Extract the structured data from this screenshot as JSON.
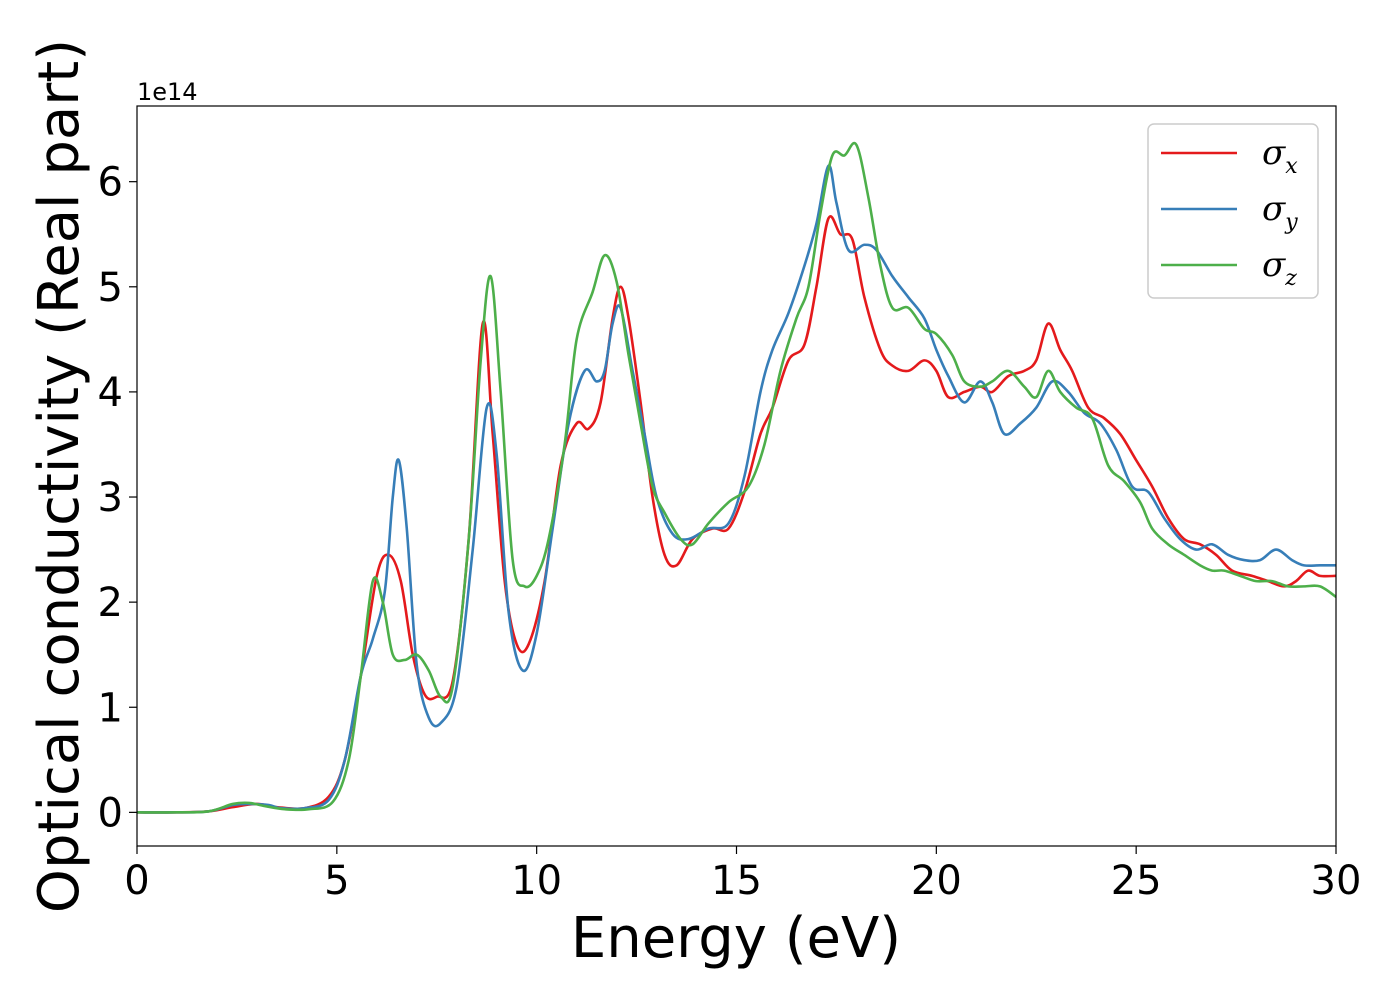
{
  "chart_data": {
    "type": "line",
    "title": "",
    "xlabel": "Energy (eV)",
    "ylabel": "Optical conductivity (Real part)",
    "y_offset_label": "1e14",
    "xlim": [
      0,
      30
    ],
    "ylim": [
      -0.32,
      6.72
    ],
    "x_ticks": [
      0,
      5,
      10,
      15,
      20,
      25,
      30
    ],
    "y_ticks": [
      0,
      1,
      2,
      3,
      4,
      5,
      6
    ],
    "x_tick_labels": [
      "0",
      "5",
      "10",
      "15",
      "20",
      "25",
      "30"
    ],
    "y_tick_labels": [
      "0",
      "1",
      "2",
      "3",
      "4",
      "5",
      "6"
    ],
    "grid": false,
    "legend_position": "top-right",
    "series": [
      {
        "name_base": "σ",
        "name_sub": "x",
        "color": "#e41a1c",
        "points": [
          [
            0,
            0
          ],
          [
            1,
            0
          ],
          [
            1.8,
            0.01
          ],
          [
            2.4,
            0.05
          ],
          [
            3.0,
            0.08
          ],
          [
            3.5,
            0.05
          ],
          [
            4.2,
            0.04
          ],
          [
            4.8,
            0.15
          ],
          [
            5.2,
            0.5
          ],
          [
            5.6,
            1.3
          ],
          [
            6.0,
            2.25
          ],
          [
            6.3,
            2.45
          ],
          [
            6.6,
            2.2
          ],
          [
            6.9,
            1.5
          ],
          [
            7.2,
            1.12
          ],
          [
            7.5,
            1.1
          ],
          [
            7.9,
            1.25
          ],
          [
            8.3,
            2.6
          ],
          [
            8.65,
            4.65
          ],
          [
            8.9,
            3.6
          ],
          [
            9.2,
            2.2
          ],
          [
            9.5,
            1.6
          ],
          [
            9.8,
            1.6
          ],
          [
            10.2,
            2.2
          ],
          [
            10.6,
            3.3
          ],
          [
            11.0,
            3.7
          ],
          [
            11.3,
            3.65
          ],
          [
            11.6,
            3.9
          ],
          [
            11.9,
            4.7
          ],
          [
            12.1,
            5.0
          ],
          [
            12.3,
            4.7
          ],
          [
            12.6,
            3.9
          ],
          [
            12.9,
            3.0
          ],
          [
            13.2,
            2.45
          ],
          [
            13.5,
            2.35
          ],
          [
            13.9,
            2.6
          ],
          [
            14.4,
            2.7
          ],
          [
            14.8,
            2.7
          ],
          [
            15.2,
            3.05
          ],
          [
            15.6,
            3.6
          ],
          [
            15.9,
            3.85
          ],
          [
            16.3,
            4.3
          ],
          [
            16.7,
            4.45
          ],
          [
            17.0,
            5.0
          ],
          [
            17.3,
            5.65
          ],
          [
            17.6,
            5.5
          ],
          [
            17.9,
            5.45
          ],
          [
            18.2,
            4.9
          ],
          [
            18.6,
            4.4
          ],
          [
            18.9,
            4.25
          ],
          [
            19.3,
            4.2
          ],
          [
            19.7,
            4.3
          ],
          [
            20.0,
            4.2
          ],
          [
            20.3,
            3.95
          ],
          [
            20.7,
            4.0
          ],
          [
            21.1,
            4.05
          ],
          [
            21.4,
            4.0
          ],
          [
            21.8,
            4.15
          ],
          [
            22.2,
            4.2
          ],
          [
            22.5,
            4.3
          ],
          [
            22.8,
            4.65
          ],
          [
            23.1,
            4.4
          ],
          [
            23.4,
            4.2
          ],
          [
            23.8,
            3.85
          ],
          [
            24.2,
            3.75
          ],
          [
            24.6,
            3.6
          ],
          [
            25.0,
            3.35
          ],
          [
            25.4,
            3.1
          ],
          [
            25.8,
            2.8
          ],
          [
            26.2,
            2.6
          ],
          [
            26.6,
            2.55
          ],
          [
            27.0,
            2.45
          ],
          [
            27.4,
            2.3
          ],
          [
            27.9,
            2.25
          ],
          [
            28.3,
            2.2
          ],
          [
            28.7,
            2.15
          ],
          [
            29.0,
            2.2
          ],
          [
            29.3,
            2.3
          ],
          [
            29.6,
            2.25
          ],
          [
            30.0,
            2.25
          ]
        ]
      },
      {
        "name_base": "σ",
        "name_sub": "y",
        "color": "#377eb8",
        "points": [
          [
            0,
            0
          ],
          [
            1,
            0
          ],
          [
            1.8,
            0.01
          ],
          [
            2.4,
            0.07
          ],
          [
            2.8,
            0.08
          ],
          [
            3.3,
            0.07
          ],
          [
            3.6,
            0.04
          ],
          [
            4.2,
            0.04
          ],
          [
            4.8,
            0.12
          ],
          [
            5.2,
            0.5
          ],
          [
            5.6,
            1.3
          ],
          [
            5.9,
            1.65
          ],
          [
            6.2,
            2.1
          ],
          [
            6.4,
            3.0
          ],
          [
            6.55,
            3.35
          ],
          [
            6.75,
            2.7
          ],
          [
            7.0,
            1.4
          ],
          [
            7.3,
            0.9
          ],
          [
            7.6,
            0.85
          ],
          [
            8.0,
            1.2
          ],
          [
            8.4,
            2.5
          ],
          [
            8.75,
            3.85
          ],
          [
            9.0,
            3.4
          ],
          [
            9.3,
            1.9
          ],
          [
            9.65,
            1.35
          ],
          [
            10.0,
            1.7
          ],
          [
            10.4,
            2.7
          ],
          [
            10.8,
            3.7
          ],
          [
            11.2,
            4.2
          ],
          [
            11.5,
            4.1
          ],
          [
            11.7,
            4.2
          ],
          [
            11.9,
            4.65
          ],
          [
            12.1,
            4.8
          ],
          [
            12.4,
            4.2
          ],
          [
            12.7,
            3.6
          ],
          [
            13.0,
            3.0
          ],
          [
            13.4,
            2.65
          ],
          [
            13.8,
            2.6
          ],
          [
            14.3,
            2.7
          ],
          [
            14.8,
            2.75
          ],
          [
            15.2,
            3.2
          ],
          [
            15.6,
            4.0
          ],
          [
            15.9,
            4.4
          ],
          [
            16.3,
            4.75
          ],
          [
            16.7,
            5.2
          ],
          [
            17.0,
            5.6
          ],
          [
            17.3,
            6.15
          ],
          [
            17.5,
            5.8
          ],
          [
            17.8,
            5.35
          ],
          [
            18.2,
            5.4
          ],
          [
            18.5,
            5.35
          ],
          [
            18.9,
            5.1
          ],
          [
            19.3,
            4.9
          ],
          [
            19.7,
            4.7
          ],
          [
            20.0,
            4.4
          ],
          [
            20.3,
            4.15
          ],
          [
            20.7,
            3.9
          ],
          [
            21.1,
            4.1
          ],
          [
            21.4,
            3.9
          ],
          [
            21.7,
            3.6
          ],
          [
            22.1,
            3.7
          ],
          [
            22.5,
            3.85
          ],
          [
            22.9,
            4.1
          ],
          [
            23.3,
            4.0
          ],
          [
            23.7,
            3.8
          ],
          [
            24.1,
            3.7
          ],
          [
            24.5,
            3.45
          ],
          [
            24.9,
            3.1
          ],
          [
            25.3,
            3.05
          ],
          [
            25.7,
            2.8
          ],
          [
            26.1,
            2.6
          ],
          [
            26.5,
            2.5
          ],
          [
            26.9,
            2.55
          ],
          [
            27.3,
            2.45
          ],
          [
            27.7,
            2.4
          ],
          [
            28.1,
            2.4
          ],
          [
            28.5,
            2.5
          ],
          [
            28.9,
            2.4
          ],
          [
            29.2,
            2.35
          ],
          [
            29.6,
            2.35
          ],
          [
            30.0,
            2.35
          ]
        ]
      },
      {
        "name_base": "σ",
        "name_sub": "z",
        "color": "#4daf4a",
        "points": [
          [
            0,
            0
          ],
          [
            1,
            0
          ],
          [
            1.8,
            0.01
          ],
          [
            2.4,
            0.08
          ],
          [
            2.8,
            0.09
          ],
          [
            3.2,
            0.06
          ],
          [
            3.7,
            0.03
          ],
          [
            4.3,
            0.03
          ],
          [
            4.9,
            0.1
          ],
          [
            5.3,
            0.5
          ],
          [
            5.6,
            1.3
          ],
          [
            5.9,
            2.2
          ],
          [
            6.15,
            2.0
          ],
          [
            6.4,
            1.5
          ],
          [
            6.7,
            1.45
          ],
          [
            7.0,
            1.5
          ],
          [
            7.3,
            1.35
          ],
          [
            7.6,
            1.1
          ],
          [
            7.9,
            1.2
          ],
          [
            8.3,
            2.6
          ],
          [
            8.6,
            4.3
          ],
          [
            8.85,
            5.1
          ],
          [
            9.1,
            4.0
          ],
          [
            9.4,
            2.4
          ],
          [
            9.7,
            2.15
          ],
          [
            10.0,
            2.25
          ],
          [
            10.3,
            2.6
          ],
          [
            10.7,
            3.5
          ],
          [
            11.0,
            4.5
          ],
          [
            11.4,
            4.95
          ],
          [
            11.7,
            5.3
          ],
          [
            12.0,
            5.05
          ],
          [
            12.3,
            4.35
          ],
          [
            12.6,
            3.7
          ],
          [
            12.9,
            3.1
          ],
          [
            13.2,
            2.85
          ],
          [
            13.6,
            2.6
          ],
          [
            13.9,
            2.55
          ],
          [
            14.3,
            2.75
          ],
          [
            14.8,
            2.95
          ],
          [
            15.3,
            3.1
          ],
          [
            15.7,
            3.5
          ],
          [
            16.1,
            4.2
          ],
          [
            16.5,
            4.7
          ],
          [
            16.8,
            5.0
          ],
          [
            17.1,
            5.7
          ],
          [
            17.4,
            6.25
          ],
          [
            17.7,
            6.25
          ],
          [
            18.0,
            6.35
          ],
          [
            18.3,
            5.85
          ],
          [
            18.6,
            5.2
          ],
          [
            18.9,
            4.8
          ],
          [
            19.3,
            4.8
          ],
          [
            19.7,
            4.6
          ],
          [
            20.0,
            4.55
          ],
          [
            20.4,
            4.35
          ],
          [
            20.7,
            4.1
          ],
          [
            21.1,
            4.05
          ],
          [
            21.4,
            4.1
          ],
          [
            21.8,
            4.2
          ],
          [
            22.2,
            4.05
          ],
          [
            22.5,
            3.95
          ],
          [
            22.8,
            4.2
          ],
          [
            23.1,
            4.0
          ],
          [
            23.5,
            3.85
          ],
          [
            23.9,
            3.75
          ],
          [
            24.3,
            3.3
          ],
          [
            24.7,
            3.15
          ],
          [
            25.1,
            2.95
          ],
          [
            25.4,
            2.7
          ],
          [
            25.8,
            2.55
          ],
          [
            26.2,
            2.45
          ],
          [
            26.6,
            2.35
          ],
          [
            26.9,
            2.3
          ],
          [
            27.2,
            2.3
          ],
          [
            27.6,
            2.25
          ],
          [
            28.0,
            2.2
          ],
          [
            28.4,
            2.2
          ],
          [
            28.8,
            2.15
          ],
          [
            29.2,
            2.15
          ],
          [
            29.6,
            2.15
          ],
          [
            30.0,
            2.05
          ]
        ]
      }
    ]
  }
}
